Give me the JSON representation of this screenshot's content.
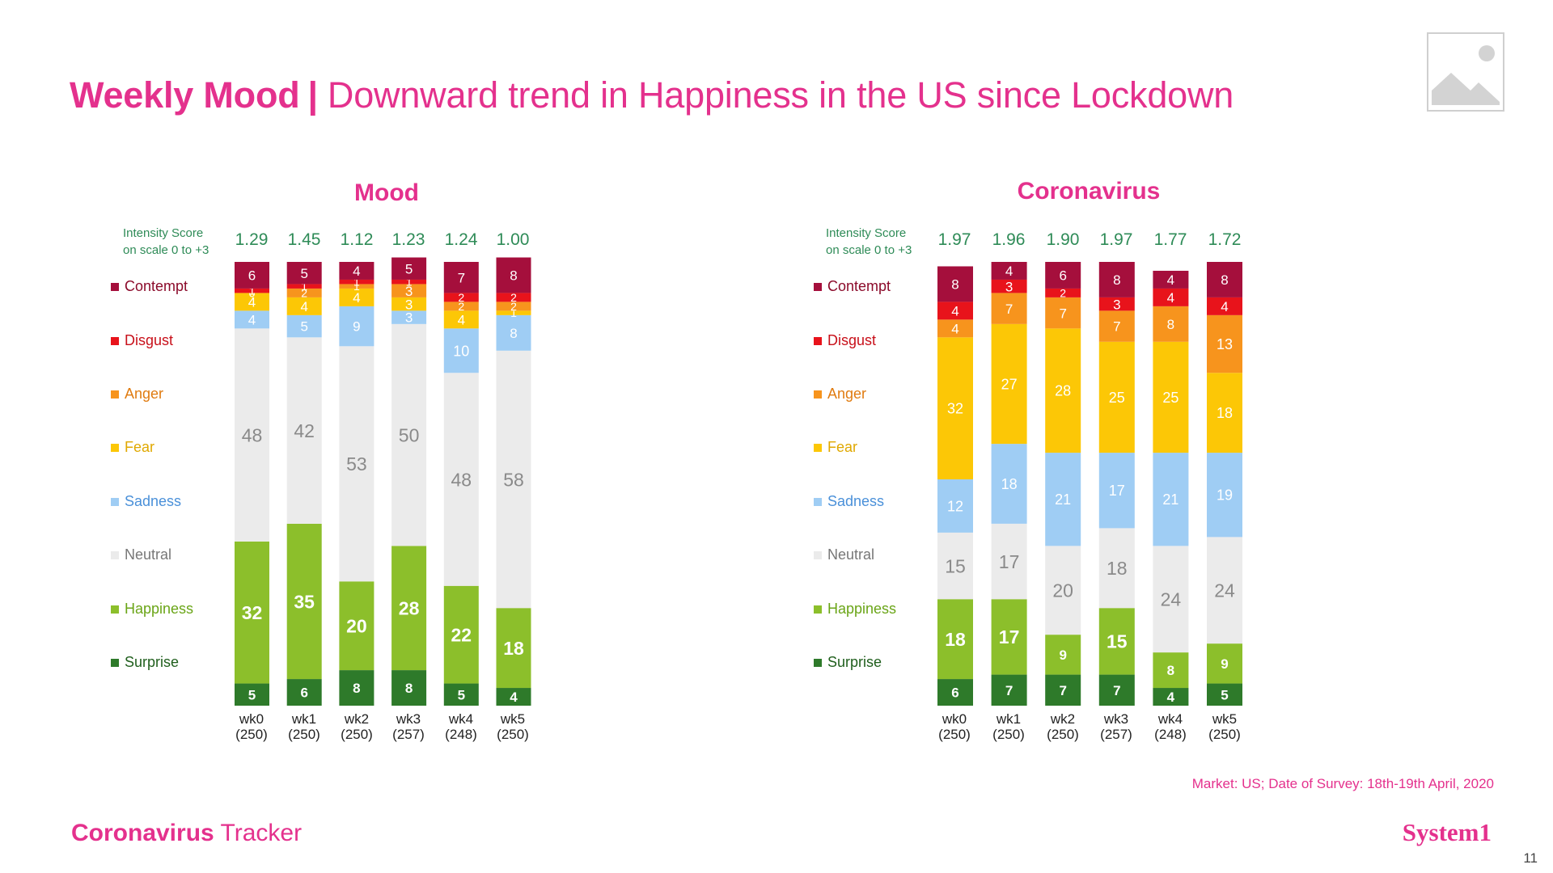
{
  "header": {
    "title_bold": "Weekly Mood",
    "separator": "|",
    "title_rest": "Downward trend in Happiness in the US since Lockdown"
  },
  "legend": [
    {
      "label": "Contempt",
      "color": "#a50f3c",
      "text_color": "#8b0a2a"
    },
    {
      "label": "Disgust",
      "color": "#e8131b",
      "text_color": "#c8101a"
    },
    {
      "label": "Anger",
      "color": "#f7941d",
      "text_color": "#e07b10"
    },
    {
      "label": "Fear",
      "color": "#fcc706",
      "text_color": "#e0a800"
    },
    {
      "label": "Sadness",
      "color": "#9fcdf4",
      "text_color": "#4a90d9"
    },
    {
      "label": "Neutral",
      "color": "#ebebeb",
      "text_color": "#777777"
    },
    {
      "label": "Happiness",
      "color": "#8cbf2b",
      "text_color": "#6aa517"
    },
    {
      "label": "Surprise",
      "color": "#2e7a2a",
      "text_color": "#1f5e1c"
    }
  ],
  "intensity_label_line1": "Intensity Score",
  "intensity_label_line2": "on scale 0 to +3",
  "footnote": "Market: US; Date of Survey: 18th-19th April, 2020",
  "brand_left_bold": "Coronavirus",
  "brand_left_rest": " Tracker",
  "brand_right": "System1",
  "page_number": "11",
  "chart_data": [
    {
      "type": "bar",
      "stacked": true,
      "title": "Mood",
      "categories": [
        "wk0",
        "wk1",
        "wk2",
        "wk3",
        "wk4",
        "wk5"
      ],
      "sample_sizes": [
        "(250)",
        "(250)",
        "(250)",
        "(257)",
        "(248)",
        "(250)"
      ],
      "intensity_scores": [
        "1.29",
        "1.45",
        "1.12",
        "1.23",
        "1.24",
        "1.00"
      ],
      "ylim": [
        0,
        100
      ],
      "series": [
        {
          "name": "Surprise",
          "values": [
            5,
            6,
            8,
            8,
            5,
            4
          ]
        },
        {
          "name": "Happiness",
          "values": [
            32,
            35,
            20,
            28,
            22,
            18
          ]
        },
        {
          "name": "Neutral",
          "values": [
            48,
            42,
            53,
            50,
            48,
            58
          ]
        },
        {
          "name": "Sadness",
          "values": [
            4,
            5,
            9,
            3,
            10,
            8
          ]
        },
        {
          "name": "Fear",
          "values": [
            4,
            4,
            4,
            3,
            4,
            1
          ]
        },
        {
          "name": "Anger",
          "values": [
            0,
            2,
            1,
            3,
            2,
            2
          ]
        },
        {
          "name": "Disgust",
          "values": [
            1,
            1,
            1,
            1,
            2,
            2
          ]
        },
        {
          "name": "Contempt",
          "values": [
            6,
            5,
            4,
            5,
            7,
            8
          ]
        }
      ]
    },
    {
      "type": "bar",
      "stacked": true,
      "title": "Coronavirus",
      "categories": [
        "wk0",
        "wk1",
        "wk2",
        "wk3",
        "wk4",
        "wk5"
      ],
      "sample_sizes": [
        "(250)",
        "(250)",
        "(250)",
        "(257)",
        "(248)",
        "(250)"
      ],
      "intensity_scores": [
        "1.97",
        "1.96",
        "1.90",
        "1.97",
        "1.77",
        "1.72"
      ],
      "ylim": [
        0,
        100
      ],
      "series": [
        {
          "name": "Surprise",
          "values": [
            6,
            7,
            7,
            7,
            4,
            5
          ]
        },
        {
          "name": "Happiness",
          "values": [
            18,
            17,
            9,
            15,
            8,
            9
          ]
        },
        {
          "name": "Neutral",
          "values": [
            15,
            17,
            20,
            18,
            24,
            24
          ]
        },
        {
          "name": "Sadness",
          "values": [
            12,
            18,
            21,
            17,
            21,
            19
          ]
        },
        {
          "name": "Fear",
          "values": [
            32,
            27,
            28,
            25,
            25,
            18
          ]
        },
        {
          "name": "Anger",
          "values": [
            4,
            7,
            7,
            7,
            8,
            13
          ]
        },
        {
          "name": "Disgust",
          "values": [
            4,
            3,
            2,
            3,
            4,
            4
          ]
        },
        {
          "name": "Contempt",
          "values": [
            8,
            4,
            6,
            8,
            4,
            8
          ]
        }
      ]
    }
  ]
}
